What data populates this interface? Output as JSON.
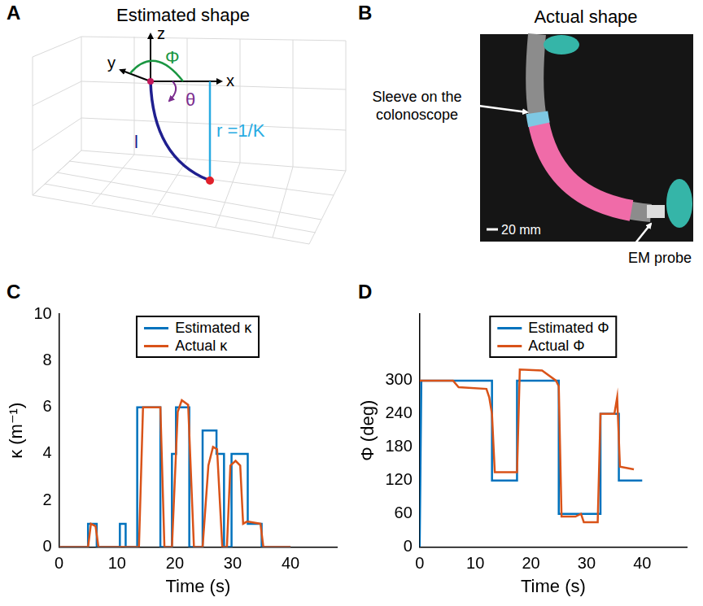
{
  "panels": [
    {
      "letter": "A",
      "title": "Estimated shape",
      "axis_labels": [
        "z",
        "y",
        "x"
      ],
      "angle_labels": [
        "Φ",
        "θ"
      ],
      "length_label": "l",
      "radius_label": "r =1/K"
    },
    {
      "letter": "B",
      "title": "Actual shape",
      "labels": [
        "Sleeve on the colonoscope",
        "EM probe"
      ],
      "scale_bar": "20 mm"
    }
  ],
  "chart_data": [
    {
      "panel": "C",
      "type": "line",
      "x_label": "Time (s)",
      "y_label": "κ (m⁻¹)",
      "xlim": [
        0,
        48
      ],
      "xticks": [
        0,
        10,
        20,
        30,
        40
      ],
      "ylim": [
        0,
        10
      ],
      "yticks": [
        0,
        2,
        4,
        6,
        8,
        10
      ],
      "grid": false,
      "legend": "top",
      "series": [
        {
          "name": "Estimated κ",
          "color": "#0072BD",
          "x": [
            0,
            5,
            5,
            6.5,
            6.5,
            10.5,
            10.5,
            11.5,
            11.5,
            13.5,
            13.5,
            17.5,
            17.5,
            19.5,
            19.5,
            20.2,
            20.2,
            22.5,
            22.5,
            24.8,
            24.8,
            27.2,
            27.2,
            28.5,
            28.5,
            29.8,
            29.8,
            32.6,
            32.6,
            35,
            35,
            40
          ],
          "values": [
            0,
            0,
            1,
            1,
            0,
            0,
            1,
            1,
            0,
            0,
            6,
            6,
            0,
            0,
            4,
            4,
            6,
            6,
            0,
            0,
            5,
            5,
            4,
            4,
            0,
            0,
            4,
            4,
            1,
            1,
            0,
            0
          ]
        },
        {
          "name": "Actual κ",
          "color": "#D95319",
          "x": [
            0,
            5,
            5.5,
            6.3,
            6.8,
            13.8,
            14.5,
            17.5,
            18.2,
            19.5,
            20.5,
            21.2,
            22.3,
            23.3,
            24.8,
            25.8,
            26.6,
            27.3,
            28.2,
            29,
            29.6,
            30.5,
            31.3,
            31.8,
            32.5,
            34.8,
            35.3,
            40
          ],
          "values": [
            0,
            0,
            1,
            0.9,
            0,
            0,
            6,
            6,
            0,
            0,
            5.8,
            6.3,
            6.1,
            0,
            0,
            3.5,
            4.3,
            4.2,
            0,
            0,
            3.5,
            3.7,
            3.5,
            1,
            1.1,
            1,
            0,
            0
          ]
        }
      ]
    },
    {
      "panel": "D",
      "type": "line",
      "x_label": "Time (s)",
      "y_label": "Φ (deg)",
      "xlim": [
        0,
        48
      ],
      "xticks": [
        0,
        10,
        20,
        30,
        40
      ],
      "ylim": [
        0,
        420
      ],
      "yticks": [
        0,
        60,
        120,
        180,
        240,
        300
      ],
      "grid": false,
      "legend": "top",
      "series": [
        {
          "name": "Estimated Φ",
          "color": "#0072BD",
          "x": [
            0,
            0.3,
            13,
            13,
            17.5,
            17.5,
            25,
            25,
            32.5,
            32.5,
            35.8,
            35.8,
            40
          ],
          "values": [
            0,
            300,
            300,
            120,
            120,
            300,
            300,
            60,
            60,
            240,
            240,
            120,
            120
          ]
        },
        {
          "name": "Actual Φ",
          "color": "#D95319",
          "x": [
            0,
            6,
            7,
            12,
            12.5,
            13,
            13.5,
            17.5,
            18,
            22,
            24.5,
            25,
            25.5,
            28,
            29,
            29.5,
            32,
            32.5,
            35,
            35.5,
            36,
            38.5
          ],
          "values": [
            300,
            300,
            288,
            285,
            270,
            240,
            135,
            135,
            320,
            318,
            300,
            290,
            55,
            55,
            60,
            45,
            45,
            240,
            240,
            270,
            145,
            140
          ]
        }
      ]
    }
  ]
}
